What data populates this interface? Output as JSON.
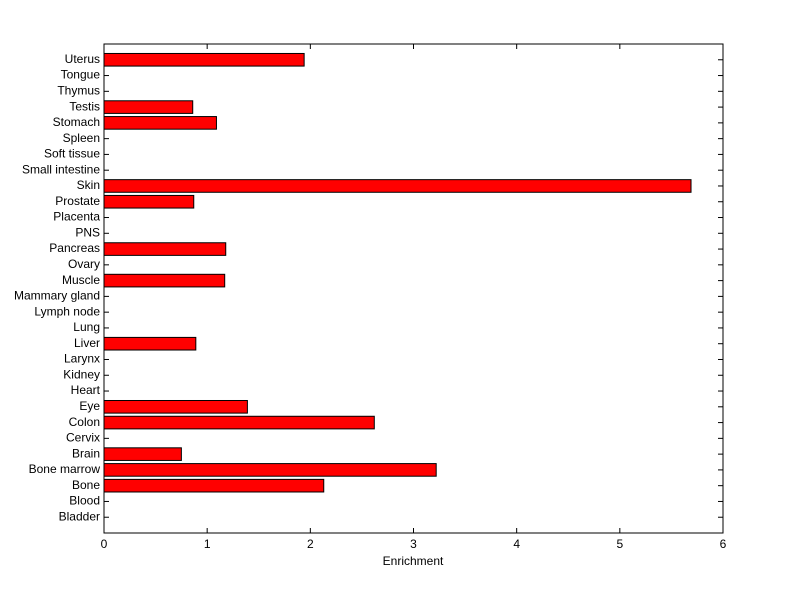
{
  "chart_data": {
    "type": "barh",
    "categories": [
      "Bladder",
      "Blood",
      "Bone",
      "Bone marrow",
      "Brain",
      "Cervix",
      "Colon",
      "Eye",
      "Heart",
      "Kidney",
      "Larynx",
      "Liver",
      "Lung",
      "Lymph node",
      "Mammary gland",
      "Muscle",
      "Ovary",
      "Pancreas",
      "PNS",
      "Placenta",
      "Prostate",
      "Skin",
      "Small intestine",
      "Soft tissue",
      "Spleen",
      "Stomach",
      "Testis",
      "Thymus",
      "Tongue",
      "Uterus"
    ],
    "values": [
      0,
      0,
      2.13,
      3.22,
      0.75,
      0,
      2.62,
      1.39,
      0,
      0,
      0,
      0.89,
      0,
      0,
      0,
      1.17,
      0,
      1.18,
      0,
      0,
      0.87,
      5.69,
      0,
      0,
      0,
      1.09,
      0.86,
      0,
      0,
      1.94
    ],
    "color": "#ff0000",
    "x_label": "Enrichment",
    "xlim": [
      0,
      6
    ],
    "xticks": [
      0,
      1,
      2,
      3,
      4,
      5,
      6
    ]
  }
}
